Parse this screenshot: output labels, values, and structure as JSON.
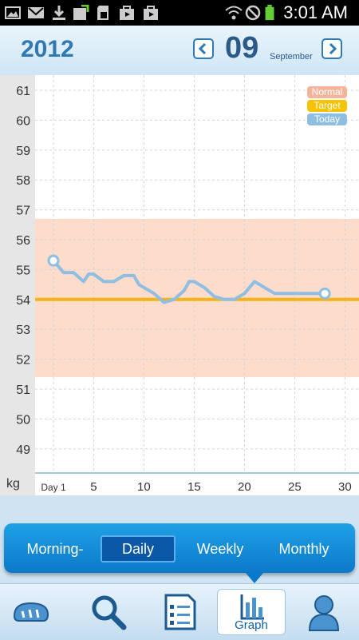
{
  "status": {
    "time": "3:01 AM",
    "left_icons": [
      "gallery-icon",
      "gmail-icon",
      "download-icon",
      "update-icon",
      "sd-card-icon",
      "store-icon",
      "media-icon"
    ],
    "right_icons": [
      "wifi-icon",
      "mute-icon",
      "battery-icon"
    ]
  },
  "header": {
    "year": "2012",
    "month_number": "09",
    "month_name": "September",
    "prev_icon": "chevron-left-icon",
    "next_icon": "chevron-right-icon"
  },
  "legend": [
    {
      "label": "Normal",
      "color": "#f5b49a"
    },
    {
      "label": "Target",
      "color": "#f5c300"
    },
    {
      "label": "Today",
      "color": "#8ebfe3"
    }
  ],
  "chart_data": {
    "type": "line",
    "y_unit": "kg",
    "ylim": [
      48.4,
      62
    ],
    "y_ticks": [
      61,
      60,
      59,
      58,
      57,
      56,
      55,
      54,
      53,
      52,
      51,
      50,
      49
    ],
    "xlim": [
      0,
      31
    ],
    "x_ticks": [
      {
        "value": 1,
        "label": "Day 1"
      },
      {
        "value": 5,
        "label": "5"
      },
      {
        "value": 10,
        "label": "10"
      },
      {
        "value": 15,
        "label": "15"
      },
      {
        "value": 20,
        "label": "20"
      },
      {
        "value": 25,
        "label": "25"
      },
      {
        "value": 30,
        "label": "30"
      }
    ],
    "normal_range": [
      51.4,
      56.7
    ],
    "target": 54.0,
    "series": [
      {
        "color": "#8ebfe3",
        "points": [
          [
            1,
            55.3
          ],
          [
            2,
            54.9
          ],
          [
            3,
            54.9
          ],
          [
            4,
            54.6
          ],
          [
            4.5,
            54.85
          ],
          [
            5,
            54.85
          ],
          [
            6,
            54.6
          ],
          [
            7,
            54.6
          ],
          [
            8,
            54.8
          ],
          [
            9,
            54.8
          ],
          [
            9.5,
            54.5
          ],
          [
            10,
            54.4
          ],
          [
            11,
            54.2
          ],
          [
            12,
            53.9
          ],
          [
            13,
            54.0
          ],
          [
            14,
            54.3
          ],
          [
            14.5,
            54.6
          ],
          [
            15,
            54.6
          ],
          [
            16,
            54.4
          ],
          [
            17,
            54.1
          ],
          [
            18,
            54.0
          ],
          [
            19,
            54.0
          ],
          [
            20,
            54.2
          ],
          [
            21,
            54.6
          ],
          [
            22,
            54.4
          ],
          [
            23,
            54.2
          ],
          [
            24,
            54.2
          ],
          [
            25,
            54.2
          ],
          [
            26,
            54.2
          ],
          [
            27,
            54.2
          ],
          [
            28,
            54.2
          ]
        ]
      }
    ],
    "grid": true
  },
  "periods": {
    "items": [
      "Morning-",
      "Daily",
      "Weekly",
      "Monthly"
    ],
    "selected": "Daily"
  },
  "tabs": {
    "graph_label": "Graph"
  },
  "colors": {
    "accent": "#2f79b5",
    "normal_band": "#fddccc",
    "target_line": "#f5b31a",
    "series_line": "#8ebfe3",
    "period_bar": "#0b79c9"
  }
}
